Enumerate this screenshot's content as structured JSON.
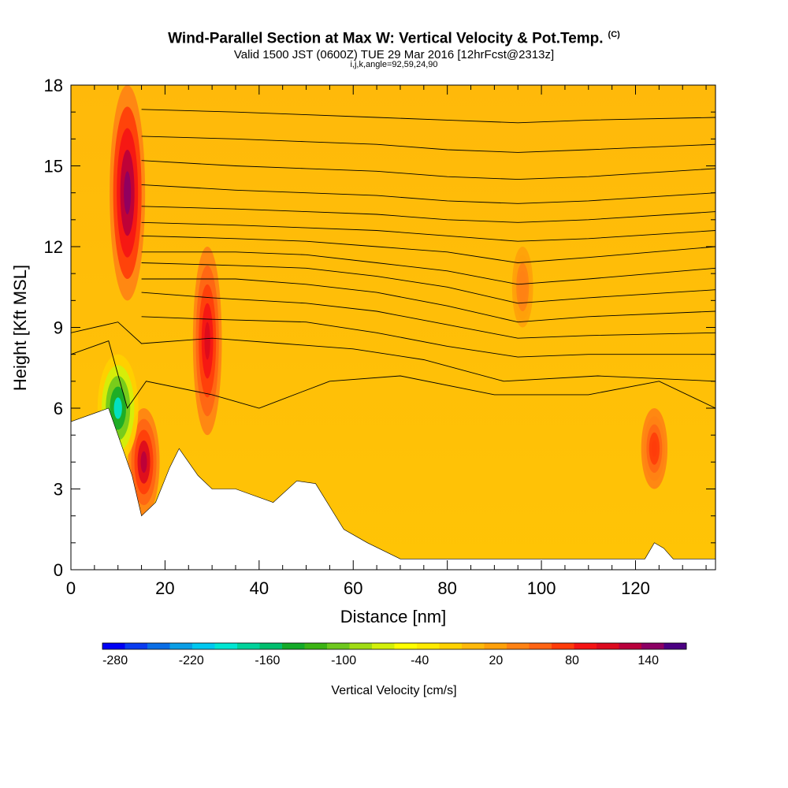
{
  "header": {
    "title": "Wind-Parallel Section at Max W: Vertical Velocity & Pot.Temp.",
    "title_mark": "(C)",
    "subtitle": "Valid 1500 JST (0600Z) TUE 29 Mar 2016 [12hrFcst@2313z]",
    "subtitle2": "i,j,k,angle=92,59,24,90"
  },
  "chart_data": {
    "type": "heatmap",
    "xlabel": "Distance [nm]",
    "ylabel": "Height [Kft MSL]",
    "xlim": [
      0,
      137
    ],
    "ylim": [
      0,
      18
    ],
    "x_ticks": [
      "0",
      "20",
      "40",
      "60",
      "80",
      "100",
      "120"
    ],
    "y_ticks": [
      "0",
      "3",
      "6",
      "9",
      "12",
      "15",
      "18"
    ],
    "colorbar": {
      "label": "Vertical Velocity [cm/s]",
      "ticks": [
        "-280",
        "-220",
        "-160",
        "-100",
        "-40",
        "20",
        "80",
        "140"
      ],
      "range": [
        -290,
        170
      ],
      "colors": [
        "#0000f5",
        "#0a3cf0",
        "#0a6ee6",
        "#0a9ee6",
        "#00c8f0",
        "#00e6d2",
        "#00d29b",
        "#00be6e",
        "#14aa28",
        "#3cb414",
        "#6ec81e",
        "#a0dc14",
        "#d2f00a",
        "#ffff00",
        "#ffeb00",
        "#ffd200",
        "#ffb90a",
        "#ffa00a",
        "#ff8214",
        "#ff6414",
        "#ff3c0a",
        "#f51414",
        "#dc0a1e",
        "#b9003c",
        "#8c0064",
        "#4b0082"
      ]
    },
    "terrain_height_kft": [
      [
        0,
        5.5
      ],
      [
        8,
        6.0
      ],
      [
        11,
        4.5
      ],
      [
        13,
        3.5
      ],
      [
        15,
        2.0
      ],
      [
        18,
        2.5
      ],
      [
        21,
        3.8
      ],
      [
        23,
        4.5
      ],
      [
        27,
        3.5
      ],
      [
        30,
        3.0
      ],
      [
        35,
        3.0
      ],
      [
        43,
        2.5
      ],
      [
        48,
        3.3
      ],
      [
        52,
        3.2
      ],
      [
        58,
        1.5
      ],
      [
        63,
        1.0
      ],
      [
        70,
        0.4
      ],
      [
        100,
        0.4
      ],
      [
        122,
        0.4
      ],
      [
        124,
        1.0
      ],
      [
        126,
        0.8
      ],
      [
        128,
        0.4
      ],
      [
        137,
        0.4
      ]
    ],
    "velocity_features": [
      {
        "x": 12,
        "y_range": [
          10,
          18
        ],
        "peak": 150
      },
      {
        "x": 15.5,
        "y_range": [
          2,
          6
        ],
        "peak": 120
      },
      {
        "x": 10,
        "y_range": [
          4,
          8
        ],
        "peak": -190
      },
      {
        "x": 29,
        "y_range": [
          5,
          12
        ],
        "peak": 100
      },
      {
        "x": 124,
        "y_range": [
          3,
          6
        ],
        "peak": 80
      },
      {
        "x": 96,
        "y_range": [
          9,
          12
        ],
        "peak": 40
      }
    ],
    "theta_contours": [
      [
        [
          0,
          8.0
        ],
        [
          8,
          8.5
        ],
        [
          12,
          6
        ],
        [
          16,
          7
        ],
        [
          30,
          6.5
        ],
        [
          40,
          6
        ],
        [
          55,
          7
        ],
        [
          70,
          7.2
        ],
        [
          90,
          6.5
        ],
        [
          110,
          6.5
        ],
        [
          125,
          7
        ],
        [
          137,
          6
        ]
      ],
      [
        [
          0,
          8.8
        ],
        [
          10,
          9.2
        ],
        [
          15,
          8.4
        ],
        [
          30,
          8.6
        ],
        [
          45,
          8.4
        ],
        [
          60,
          8.2
        ],
        [
          75,
          7.8
        ],
        [
          92,
          7.0
        ],
        [
          112,
          7.2
        ],
        [
          137,
          7
        ]
      ],
      [
        [
          15,
          9.4
        ],
        [
          30,
          9.3
        ],
        [
          50,
          9.2
        ],
        [
          65,
          8.8
        ],
        [
          80,
          8.3
        ],
        [
          95,
          7.9
        ],
        [
          110,
          8.0
        ],
        [
          137,
          8
        ]
      ],
      [
        [
          15,
          10.3
        ],
        [
          30,
          10.1
        ],
        [
          50,
          9.9
        ],
        [
          65,
          9.6
        ],
        [
          80,
          9.1
        ],
        [
          95,
          8.6
        ],
        [
          110,
          8.7
        ],
        [
          137,
          8.8
        ]
      ],
      [
        [
          15,
          10.8
        ],
        [
          35,
          10.8
        ],
        [
          50,
          10.6
        ],
        [
          65,
          10.3
        ],
        [
          80,
          9.8
        ],
        [
          95,
          9.2
        ],
        [
          110,
          9.4
        ],
        [
          137,
          9.6
        ]
      ],
      [
        [
          15,
          11.4
        ],
        [
          35,
          11.3
        ],
        [
          50,
          11.2
        ],
        [
          65,
          10.9
        ],
        [
          80,
          10.5
        ],
        [
          95,
          9.9
        ],
        [
          110,
          10.1
        ],
        [
          137,
          10.4
        ]
      ],
      [
        [
          15,
          11.8
        ],
        [
          35,
          11.8
        ],
        [
          50,
          11.7
        ],
        [
          65,
          11.4
        ],
        [
          80,
          11.1
        ],
        [
          95,
          10.6
        ],
        [
          110,
          10.8
        ],
        [
          137,
          11.2
        ]
      ],
      [
        [
          15,
          12.4
        ],
        [
          35,
          12.3
        ],
        [
          50,
          12.2
        ],
        [
          65,
          12.0
        ],
        [
          80,
          11.8
        ],
        [
          95,
          11.4
        ],
        [
          110,
          11.6
        ],
        [
          137,
          12.0
        ]
      ],
      [
        [
          15,
          12.9
        ],
        [
          35,
          12.8
        ],
        [
          50,
          12.7
        ],
        [
          65,
          12.6
        ],
        [
          80,
          12.4
        ],
        [
          95,
          12.2
        ],
        [
          110,
          12.3
        ],
        [
          137,
          12.6
        ]
      ],
      [
        [
          15,
          13.5
        ],
        [
          35,
          13.4
        ],
        [
          50,
          13.3
        ],
        [
          65,
          13.2
        ],
        [
          80,
          13.0
        ],
        [
          95,
          12.9
        ],
        [
          110,
          13.0
        ],
        [
          137,
          13.3
        ]
      ],
      [
        [
          15,
          14.3
        ],
        [
          35,
          14.1
        ],
        [
          50,
          14.0
        ],
        [
          65,
          13.9
        ],
        [
          80,
          13.7
        ],
        [
          95,
          13.6
        ],
        [
          110,
          13.7
        ],
        [
          137,
          14.0
        ]
      ],
      [
        [
          15,
          15.2
        ],
        [
          35,
          15.0
        ],
        [
          50,
          14.9
        ],
        [
          65,
          14.8
        ],
        [
          80,
          14.6
        ],
        [
          95,
          14.5
        ],
        [
          110,
          14.6
        ],
        [
          137,
          14.9
        ]
      ],
      [
        [
          15,
          16.1
        ],
        [
          35,
          16.0
        ],
        [
          50,
          15.9
        ],
        [
          65,
          15.8
        ],
        [
          80,
          15.6
        ],
        [
          95,
          15.5
        ],
        [
          110,
          15.6
        ],
        [
          137,
          15.8
        ]
      ],
      [
        [
          15,
          17.1
        ],
        [
          35,
          17.0
        ],
        [
          50,
          16.9
        ],
        [
          65,
          16.8
        ],
        [
          80,
          16.7
        ],
        [
          95,
          16.6
        ],
        [
          110,
          16.7
        ],
        [
          137,
          16.8
        ]
      ]
    ]
  }
}
